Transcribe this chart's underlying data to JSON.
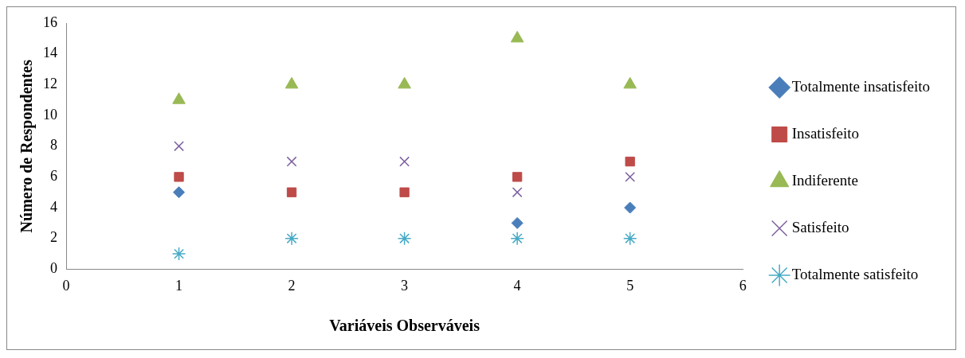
{
  "chart_data": {
    "type": "scatter",
    "xlabel": "Variáveis Observáveis",
    "ylabel": "Número de Respondentes",
    "x": [
      1,
      2,
      3,
      4,
      5
    ],
    "xlim": [
      0,
      6
    ],
    "xticks": [
      0,
      1,
      2,
      3,
      4,
      5,
      6
    ],
    "ylim": [
      0,
      16
    ],
    "yticks": [
      0,
      2,
      4,
      6,
      8,
      10,
      12,
      14,
      16
    ],
    "grid": false,
    "legend": "right",
    "series": [
      {
        "name": "Totalmente insatisfeito",
        "color": "#4a7ebb",
        "marker": "diamond",
        "values": [
          5,
          null,
          null,
          3,
          4
        ]
      },
      {
        "name": "Insatisfeito",
        "color": "#be4b48",
        "marker": "square",
        "values": [
          6,
          5,
          5,
          6,
          7
        ]
      },
      {
        "name": "Indiferente",
        "color": "#98b954",
        "marker": "triangle",
        "values": [
          11,
          12,
          12,
          15,
          12
        ]
      },
      {
        "name": "Satisfeito",
        "color": "#7d60a0",
        "marker": "cross",
        "values": [
          8,
          7,
          7,
          5,
          6
        ]
      },
      {
        "name": "Totalmente satisfeito",
        "color": "#46aac5",
        "marker": "cross",
        "values": [
          1,
          2,
          2,
          2,
          2
        ]
      }
    ]
  }
}
